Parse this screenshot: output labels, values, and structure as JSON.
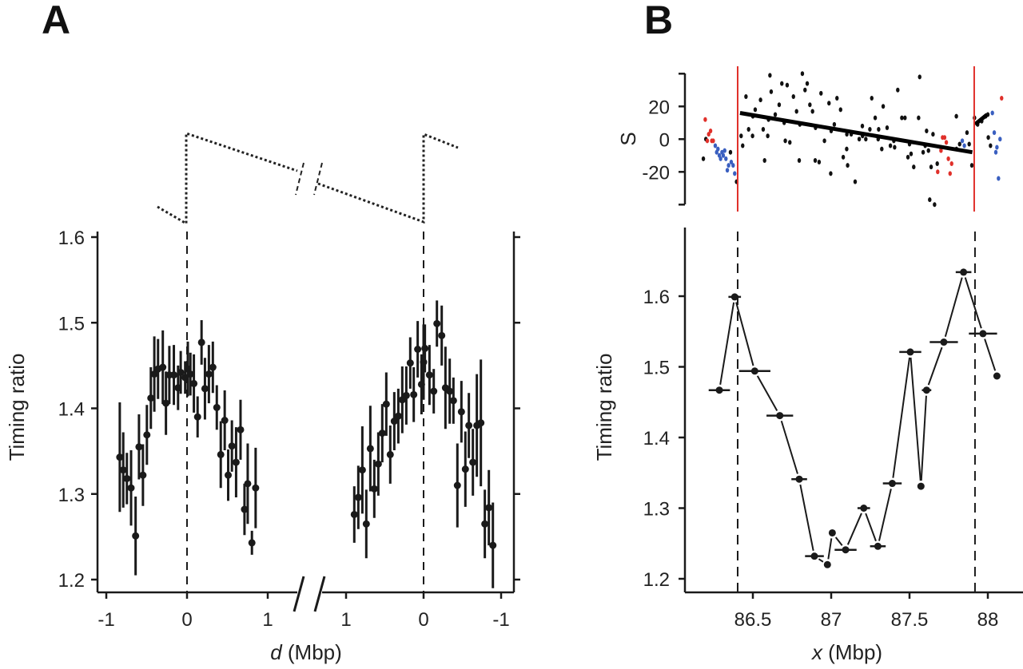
{
  "panel_labels": {
    "a": "A",
    "b": "B"
  },
  "colors": {
    "ink": "#1a1a1a",
    "red": "#e0302a",
    "blue": "#3a5fc0"
  },
  "chart_data": [
    {
      "id": "panel-a",
      "type": "scatter",
      "ylabel": "Timing ratio",
      "xlabel_var": "d",
      "xlabel_unit": " (Mbp)",
      "ylim": [
        1.19,
        1.61
      ],
      "yticks": [
        "1.2",
        "1.3",
        "1.4",
        "1.5",
        "1.6"
      ],
      "xticks_left": [
        "-1",
        "0",
        "1"
      ],
      "xticks_right": [
        "1",
        "0",
        "-1"
      ],
      "x_break": true,
      "point_format": "[d, timing_ratio, error]",
      "series": [
        {
          "name": "left",
          "points": [
            [
              -0.833,
              1.343,
              0.064
            ],
            [
              -0.79,
              1.328,
              0.044
            ],
            [
              -0.745,
              1.318,
              0.03
            ],
            [
              -0.693,
              1.307,
              0.044
            ],
            [
              -0.637,
              1.251,
              0.046
            ],
            [
              -0.595,
              1.355,
              0.038
            ],
            [
              -0.546,
              1.322,
              0.036
            ],
            [
              -0.497,
              1.369,
              0.035
            ],
            [
              -0.448,
              1.412,
              0.036
            ],
            [
              -0.405,
              1.44,
              0.044
            ],
            [
              -0.359,
              1.446,
              0.035
            ],
            [
              -0.3,
              1.448,
              0.043
            ],
            [
              -0.261,
              1.406,
              0.037
            ],
            [
              -0.219,
              1.439,
              0.034
            ],
            [
              -0.163,
              1.439,
              0.035
            ],
            [
              -0.111,
              1.424,
              0.026
            ],
            [
              -0.078,
              1.442,
              0.025
            ],
            [
              -0.023,
              1.436,
              0.019
            ],
            [
              0.01,
              1.446,
              0.032
            ],
            [
              0.042,
              1.44,
              0.025
            ],
            [
              0.085,
              1.429,
              0.034
            ],
            [
              0.131,
              1.39,
              0.024
            ],
            [
              0.18,
              1.477,
              0.026
            ],
            [
              0.222,
              1.423,
              0.036
            ],
            [
              0.271,
              1.44,
              0.034
            ],
            [
              0.32,
              1.448,
              0.03
            ],
            [
              0.369,
              1.401,
              0.026
            ],
            [
              0.418,
              1.346,
              0.039
            ],
            [
              0.467,
              1.386,
              0.035
            ],
            [
              0.51,
              1.322,
              0.03
            ],
            [
              0.556,
              1.356,
              0.03
            ],
            [
              0.608,
              1.337,
              0.041
            ],
            [
              0.663,
              1.375,
              0.035
            ],
            [
              0.712,
              1.282,
              0.03
            ],
            [
              0.752,
              1.312,
              0.047
            ],
            [
              0.804,
              1.243,
              0.014
            ],
            [
              0.85,
              1.307,
              0.047
            ]
          ]
        },
        {
          "name": "right",
          "points": [
            [
              0.894,
              1.276,
              0.033
            ],
            [
              0.842,
              1.296,
              0.037
            ],
            [
              0.79,
              1.328,
              0.051
            ],
            [
              0.739,
              1.265,
              0.04
            ],
            [
              0.687,
              1.353,
              0.05
            ],
            [
              0.636,
              1.306,
              0.034
            ],
            [
              0.584,
              1.335,
              0.037
            ],
            [
              0.533,
              1.371,
              0.034
            ],
            [
              0.481,
              1.405,
              0.037
            ],
            [
              0.43,
              1.346,
              0.034
            ],
            [
              0.378,
              1.385,
              0.034
            ],
            [
              0.326,
              1.391,
              0.032
            ],
            [
              0.275,
              1.41,
              0.039
            ],
            [
              0.223,
              1.415,
              0.034
            ],
            [
              0.172,
              1.453,
              0.03
            ],
            [
              0.127,
              1.416,
              0.032
            ],
            [
              0.076,
              1.469,
              0.033
            ],
            [
              0.027,
              1.428,
              0.035
            ],
            [
              0.0,
              1.454,
              0.044
            ],
            [
              -0.017,
              1.47,
              0.028
            ],
            [
              -0.076,
              1.439,
              0.035
            ],
            [
              -0.131,
              1.42,
              0.026
            ],
            [
              -0.172,
              1.499,
              0.027
            ],
            [
              -0.234,
              1.485,
              0.035
            ],
            [
              -0.282,
              1.424,
              0.048
            ],
            [
              -0.337,
              1.42,
              0.038
            ],
            [
              -0.385,
              1.409,
              0.027
            ],
            [
              -0.436,
              1.31,
              0.049
            ],
            [
              -0.488,
              1.396,
              0.036
            ],
            [
              -0.539,
              1.329,
              0.044
            ],
            [
              -0.584,
              1.38,
              0.038
            ],
            [
              -0.636,
              1.337,
              0.039
            ],
            [
              -0.687,
              1.38,
              0.06
            ],
            [
              -0.739,
              1.383,
              0.074
            ],
            [
              -0.79,
              1.265,
              0.04
            ],
            [
              -0.842,
              1.284,
              0.044
            ],
            [
              -0.894,
              1.24,
              0.05
            ]
          ]
        }
      ]
    },
    {
      "id": "panel-b-top",
      "type": "scatter",
      "ylabel": "S",
      "ylim": [
        -40,
        40
      ],
      "yticks": [
        "20",
        "0",
        "-20"
      ],
      "ytick_values": [
        20,
        0,
        -20
      ],
      "boundaries": [
        86.403,
        87.913
      ],
      "fit_lines": [
        [
          [
            86.418,
            16
          ],
          [
            87.901,
            -8
          ]
        ],
        [
          [
            87.918,
            9
          ],
          [
            87.995,
            15
          ]
        ]
      ],
      "point_format": "[x, S]",
      "series": [
        {
          "name": "black",
          "color": "#111111",
          "points": [
            [
              86.184,
              -12
            ],
            [
              86.2,
              0
            ],
            [
              86.357,
              -8
            ],
            [
              86.396,
              -26
            ],
            [
              86.425,
              2
            ],
            [
              86.435,
              -4
            ],
            [
              86.456,
              26
            ],
            [
              86.473,
              6
            ],
            [
              86.498,
              2
            ],
            [
              86.515,
              18
            ],
            [
              86.549,
              24
            ],
            [
              86.566,
              6
            ],
            [
              86.575,
              -13
            ],
            [
              86.595,
              2
            ],
            [
              86.609,
              39
            ],
            [
              86.617,
              29
            ],
            [
              86.643,
              15
            ],
            [
              86.668,
              21
            ],
            [
              86.685,
              34
            ],
            [
              86.707,
              -1
            ],
            [
              86.719,
              33
            ],
            [
              86.736,
              -2
            ],
            [
              86.759,
              26
            ],
            [
              86.779,
              17
            ],
            [
              86.796,
              -13
            ],
            [
              86.816,
              40
            ],
            [
              86.833,
              30
            ],
            [
              86.847,
              34
            ],
            [
              86.864,
              21
            ],
            [
              86.881,
              17
            ],
            [
              86.898,
              -13
            ],
            [
              86.923,
              -14
            ],
            [
              86.935,
              28
            ],
            [
              86.957,
              -1
            ],
            [
              86.986,
              22
            ],
            [
              86.997,
              -21
            ],
            [
              87.02,
              9
            ],
            [
              87.037,
              25
            ],
            [
              87.06,
              18
            ],
            [
              87.077,
              -11
            ],
            [
              87.099,
              -6
            ],
            [
              87.105,
              -16
            ],
            [
              87.128,
              3
            ],
            [
              87.153,
              -26
            ],
            [
              87.179,
              0
            ],
            [
              87.199,
              8
            ],
            [
              87.221,
              0
            ],
            [
              87.247,
              6
            ],
            [
              87.259,
              25
            ],
            [
              87.281,
              13
            ],
            [
              87.303,
              6
            ],
            [
              87.323,
              -6
            ],
            [
              87.332,
              20
            ],
            [
              87.357,
              7
            ],
            [
              87.378,
              -4
            ],
            [
              87.405,
              -5
            ],
            [
              87.425,
              30
            ],
            [
              87.451,
              13
            ],
            [
              87.471,
              13
            ],
            [
              87.49,
              -11
            ],
            [
              87.51,
              -9
            ],
            [
              87.527,
              -17
            ],
            [
              87.558,
              13
            ],
            [
              87.565,
              38
            ],
            [
              87.587,
              -8
            ],
            [
              87.609,
              5
            ],
            [
              87.621,
              -7
            ],
            [
              87.629,
              -37
            ],
            [
              87.638,
              -17
            ],
            [
              87.65,
              3
            ],
            [
              87.66,
              -40
            ],
            [
              87.677,
              -15
            ],
            [
              87.799,
              14
            ],
            [
              87.82,
              -3
            ],
            [
              87.867,
              4
            ],
            [
              87.881,
              -3
            ],
            [
              87.898,
              -16
            ],
            [
              86.5,
              14
            ],
            [
              86.6,
              12
            ],
            [
              86.7,
              10
            ],
            [
              86.8,
              9
            ],
            [
              86.9,
              7
            ],
            [
              87.0,
              5
            ],
            [
              87.1,
              3
            ],
            [
              87.2,
              2
            ],
            [
              87.3,
              0
            ],
            [
              87.4,
              -1
            ],
            [
              87.5,
              -3
            ],
            [
              87.6,
              -4
            ],
            [
              87.7,
              -5
            ],
            [
              87.8,
              -6
            ],
            [
              87.915,
              13
            ],
            [
              87.935,
              9
            ],
            [
              87.961,
              11
            ],
            [
              87.986,
              14
            ],
            [
              88.0,
              15
            ],
            [
              88.003,
              1
            ],
            [
              88.017,
              -4
            ]
          ]
        },
        {
          "name": "red",
          "color": "#e0302a",
          "points": [
            [
              86.196,
              12
            ],
            [
              86.209,
              -1
            ],
            [
              86.218,
              3
            ],
            [
              86.23,
              5
            ],
            [
              86.238,
              -1
            ],
            [
              86.247,
              -1
            ],
            [
              87.68,
              -20
            ],
            [
              87.701,
              -7
            ],
            [
              87.711,
              1
            ],
            [
              87.724,
              1
            ],
            [
              87.735,
              -2
            ],
            [
              87.748,
              -12
            ],
            [
              87.759,
              -21
            ],
            [
              87.769,
              -15
            ],
            [
              88.088,
              25
            ]
          ]
        },
        {
          "name": "blue",
          "color": "#3a5fc0",
          "points": [
            [
              86.26,
              -4
            ],
            [
              86.269,
              -8
            ],
            [
              86.277,
              -6
            ],
            [
              86.286,
              -10
            ],
            [
              86.294,
              -12
            ],
            [
              86.303,
              -8
            ],
            [
              86.311,
              -10
            ],
            [
              86.32,
              -7
            ],
            [
              86.328,
              -12
            ],
            [
              86.337,
              -19
            ],
            [
              86.345,
              -16
            ],
            [
              86.362,
              -14
            ],
            [
              86.374,
              -16
            ],
            [
              86.384,
              -21
            ],
            [
              87.837,
              -1
            ],
            [
              87.85,
              -4
            ],
            [
              88.029,
              16
            ],
            [
              88.041,
              4
            ],
            [
              88.051,
              -8
            ],
            [
              88.058,
              -5
            ],
            [
              88.068,
              -24
            ],
            [
              88.078,
              0
            ]
          ]
        }
      ]
    },
    {
      "id": "panel-b-bottom",
      "type": "line",
      "ylabel": "Timing ratio",
      "xlabel_var": "x",
      "xlabel_unit": " (Mbp)",
      "ylim": [
        1.19,
        1.69
      ],
      "yticks": [
        "1.2",
        "1.3",
        "1.4",
        "1.5",
        "1.6"
      ],
      "xticks": [
        "86.5",
        "87",
        "87.5",
        "88"
      ],
      "xtick_values": [
        86.5,
        87,
        87.5,
        88
      ],
      "boundaries": [
        86.403,
        87.918
      ],
      "point_format": "[x, timing_ratio, x_half_width or null]",
      "points": [
        [
          86.286,
          1.467,
          0.068
        ],
        [
          86.384,
          1.599,
          0.04
        ],
        [
          86.512,
          1.494,
          0.1
        ],
        [
          86.672,
          1.431,
          0.085
        ],
        [
          86.796,
          1.341,
          0.05
        ],
        [
          86.893,
          1.232,
          0.06
        ],
        [
          86.976,
          1.22,
          null
        ],
        [
          87.007,
          1.265,
          null
        ],
        [
          87.092,
          1.241,
          0.07
        ],
        [
          87.208,
          1.3,
          0.04
        ],
        [
          87.298,
          1.246,
          0.05
        ],
        [
          87.39,
          1.335,
          0.06
        ],
        [
          87.505,
          1.521,
          0.07
        ],
        [
          87.573,
          1.331,
          null
        ],
        [
          87.609,
          1.467,
          0.03
        ],
        [
          87.719,
          1.535,
          0.09
        ],
        [
          87.845,
          1.634,
          0.05
        ],
        [
          87.969,
          1.547,
          0.09
        ],
        [
          88.058,
          1.487,
          null
        ]
      ]
    }
  ]
}
